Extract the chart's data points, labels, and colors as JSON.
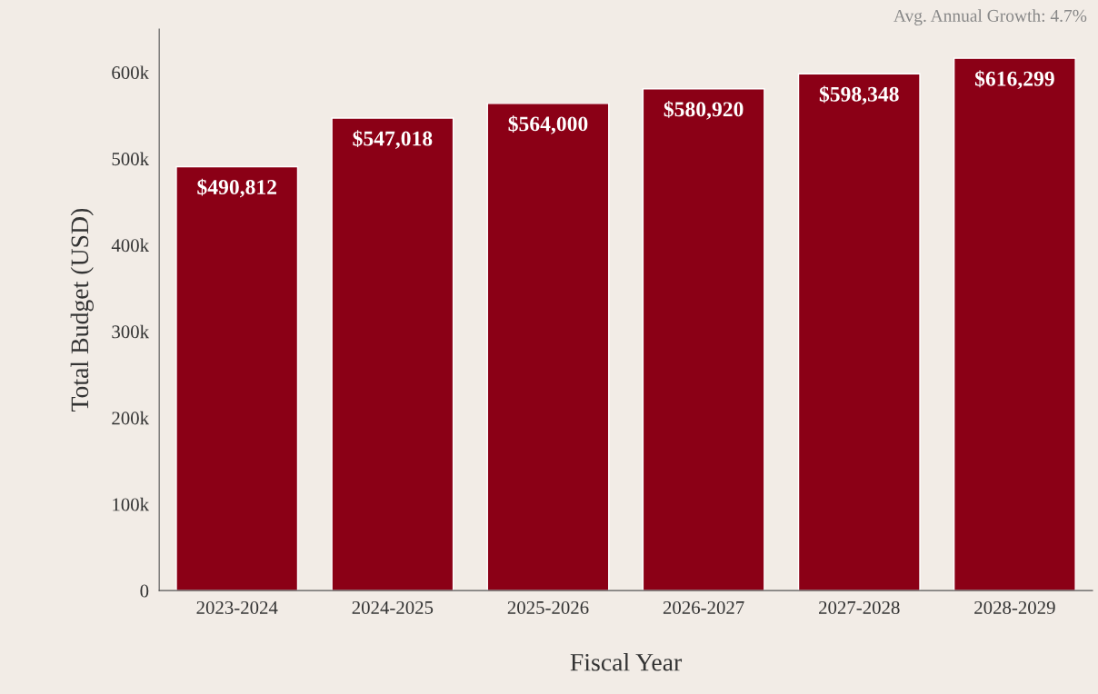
{
  "chart_data": {
    "type": "bar",
    "xlabel": "Fiscal Year",
    "ylabel": "Total Budget (USD)",
    "categories": [
      "2023-2024",
      "2024-2025",
      "2025-2026",
      "2026-2027",
      "2027-2028",
      "2028-2029"
    ],
    "values": [
      490812,
      547018,
      564000,
      580920,
      598348,
      616299
    ],
    "value_labels": [
      "$490,812",
      "$547,018",
      "$564,000",
      "$580,920",
      "$598,348",
      "$616,299"
    ],
    "color": "#8b0016",
    "ylim": [
      0,
      650000
    ],
    "yticks": [
      0,
      {
        "value": 100000,
        "label": "100k"
      },
      {
        "value": 200000,
        "label": "200k"
      },
      {
        "value": 300000,
        "label": "300k"
      },
      {
        "value": 400000,
        "label": "400k"
      },
      {
        "value": 500000,
        "label": "500k"
      },
      {
        "value": 600000,
        "label": "600k"
      }
    ],
    "grid": false,
    "legend": false,
    "annotations": [
      "Avg. Annual Growth: 4.7%"
    ]
  }
}
